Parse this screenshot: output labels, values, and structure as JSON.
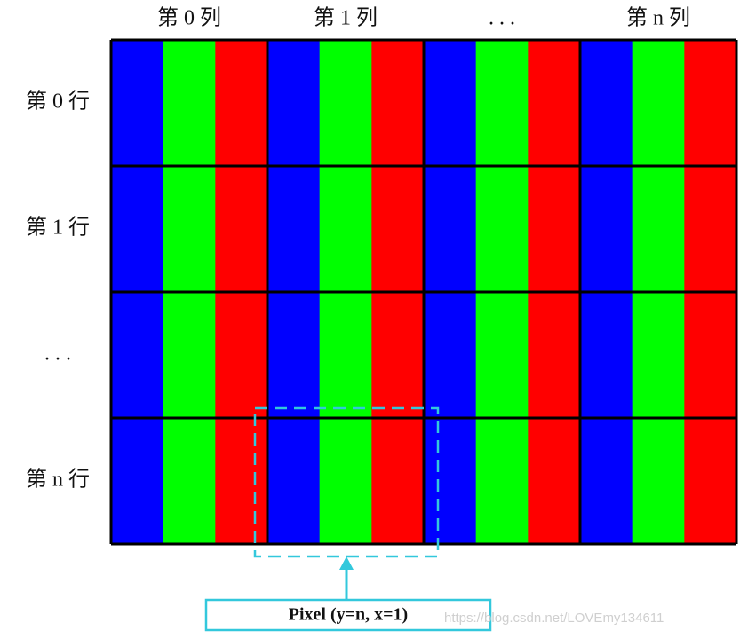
{
  "columns": [
    "第 0 列",
    "第 1 列",
    ". . .",
    "第 n 列"
  ],
  "rows": [
    "第 0 行",
    "第 1 行",
    ". . .",
    "第 n 行"
  ],
  "pixel_label": "Pixel (y=n, x=1)",
  "watermark": "https://blog.csdn.net/LOVEmy134611"
}
